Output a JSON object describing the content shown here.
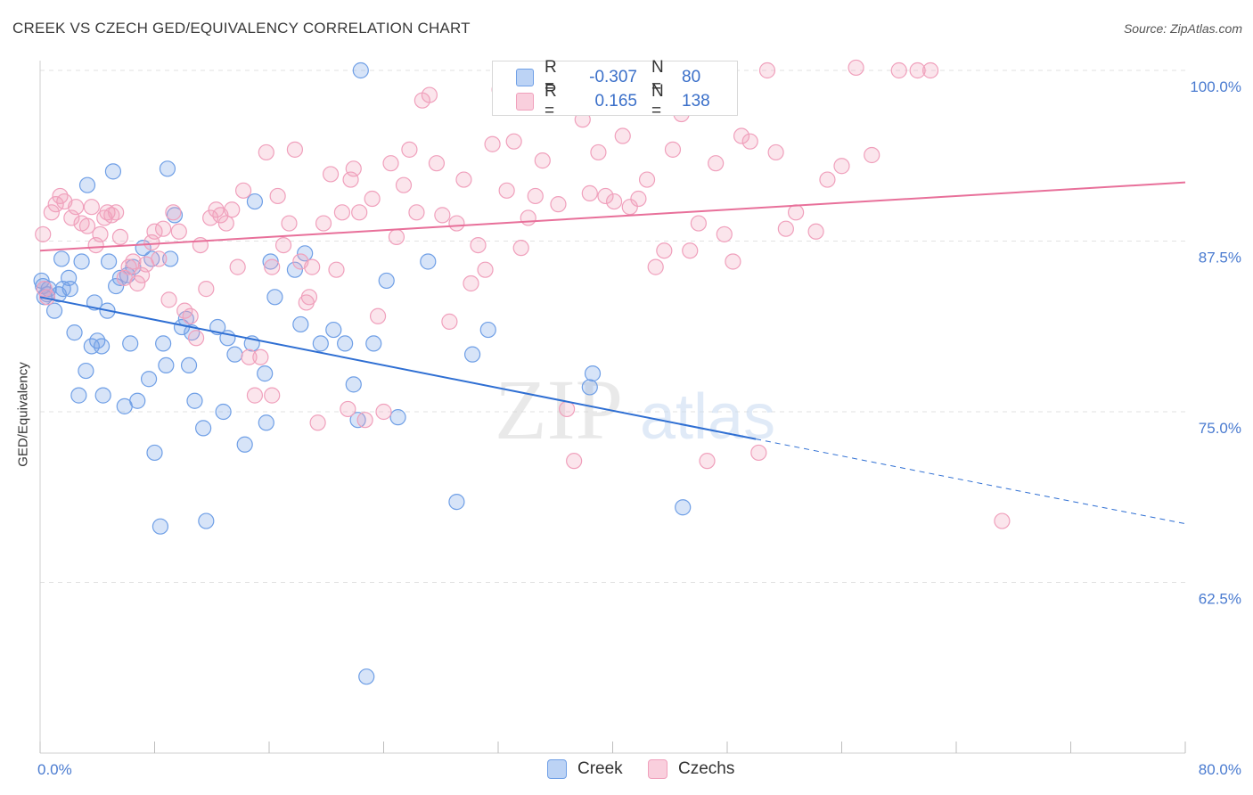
{
  "header": {
    "title": "CREEK VS CZECH GED/EQUIVALENCY CORRELATION CHART",
    "source": "Source: ZipAtlas.com"
  },
  "legend_top": {
    "rows": [
      {
        "r_label": "R =",
        "r_value": "-0.307",
        "n_label": "N =",
        "n_value": "80"
      },
      {
        "r_label": "R =",
        "r_value": "0.165",
        "n_label": "N =",
        "n_value": "138"
      }
    ]
  },
  "legend_bottom": {
    "items": [
      {
        "label": "Creek"
      },
      {
        "label": "Czechs"
      }
    ]
  },
  "watermark": {
    "zip": "ZIP",
    "atlas": "atlas"
  },
  "chart_data": {
    "type": "scatter",
    "title": "CREEK VS CZECH GED/EQUIVALENCY CORRELATION CHART",
    "ylabel": "GED/Equivalency",
    "xlabel": "",
    "xlim": [
      0,
      80
    ],
    "ylim": [
      53,
      102
    ],
    "x_ticks": [
      {
        "value": 0,
        "label": "0.0%"
      },
      {
        "value": 80,
        "label": "80.0%"
      }
    ],
    "y_ticks": [
      {
        "value": 100,
        "label": "100.0%"
      },
      {
        "value": 87.5,
        "label": "87.5%"
      },
      {
        "value": 75,
        "label": "75.0%"
      },
      {
        "value": 62.5,
        "label": "62.5%"
      }
    ],
    "grid": "horizontal dashed",
    "legend_position": "top-center",
    "colors": {
      "creek": "#6f9fe6",
      "czechs": "#f0a0bc",
      "creek_line": "#2f6fd3",
      "czechs_line": "#e8709a",
      "tick_label": "#4a7bd0"
    },
    "series": [
      {
        "name": "Creek",
        "color": "#6f9fe6",
        "trend": {
          "x": [
            0,
            50
          ],
          "y": [
            83.4,
            73.0
          ],
          "dashed_to": [
            80,
            66.8
          ]
        },
        "points": [
          [
            0.1,
            84.6
          ],
          [
            0.2,
            84.2
          ],
          [
            0.3,
            83.4
          ],
          [
            0.6,
            84.0
          ],
          [
            1.0,
            82.4
          ],
          [
            1.3,
            83.6
          ],
          [
            1.5,
            86.2
          ],
          [
            1.6,
            84.0
          ],
          [
            2.0,
            84.8
          ],
          [
            2.1,
            84.0
          ],
          [
            2.4,
            80.8
          ],
          [
            2.7,
            76.2
          ],
          [
            2.9,
            86.0
          ],
          [
            3.2,
            78.0
          ],
          [
            3.3,
            91.6
          ],
          [
            3.6,
            79.8
          ],
          [
            3.8,
            83.0
          ],
          [
            4.0,
            80.2
          ],
          [
            4.3,
            79.8
          ],
          [
            4.4,
            76.2
          ],
          [
            4.7,
            82.4
          ],
          [
            4.8,
            86.0
          ],
          [
            5.1,
            92.6
          ],
          [
            5.3,
            84.2
          ],
          [
            5.6,
            84.8
          ],
          [
            5.9,
            75.4
          ],
          [
            6.1,
            85.0
          ],
          [
            6.3,
            80.0
          ],
          [
            6.5,
            85.6
          ],
          [
            6.8,
            75.8
          ],
          [
            7.2,
            87.0
          ],
          [
            7.6,
            77.4
          ],
          [
            7.8,
            86.2
          ],
          [
            8.0,
            72.0
          ],
          [
            8.4,
            66.6
          ],
          [
            8.6,
            80.0
          ],
          [
            8.8,
            78.4
          ],
          [
            8.9,
            92.8
          ],
          [
            9.1,
            86.2
          ],
          [
            9.4,
            89.4
          ],
          [
            9.9,
            81.2
          ],
          [
            10.2,
            81.8
          ],
          [
            10.4,
            78.4
          ],
          [
            10.6,
            80.8
          ],
          [
            10.8,
            75.8
          ],
          [
            11.4,
            73.8
          ],
          [
            11.6,
            67.0
          ],
          [
            12.4,
            81.2
          ],
          [
            12.8,
            75.0
          ],
          [
            13.1,
            80.4
          ],
          [
            13.6,
            79.2
          ],
          [
            14.3,
            72.6
          ],
          [
            14.8,
            80.0
          ],
          [
            15.0,
            90.4
          ],
          [
            15.7,
            77.8
          ],
          [
            15.8,
            74.2
          ],
          [
            16.1,
            86.0
          ],
          [
            16.4,
            83.4
          ],
          [
            17.8,
            85.4
          ],
          [
            18.2,
            81.4
          ],
          [
            18.5,
            86.6
          ],
          [
            19.6,
            80.0
          ],
          [
            20.5,
            81.0
          ],
          [
            21.3,
            80.0
          ],
          [
            21.9,
            77.0
          ],
          [
            22.2,
            74.4
          ],
          [
            22.4,
            100.0
          ],
          [
            22.8,
            55.6
          ],
          [
            23.3,
            80.0
          ],
          [
            24.2,
            84.6
          ],
          [
            25.0,
            74.6
          ],
          [
            27.1,
            86.0
          ],
          [
            29.1,
            68.4
          ],
          [
            30.2,
            79.2
          ],
          [
            31.3,
            81.0
          ],
          [
            38.4,
            76.8
          ],
          [
            38.6,
            77.8
          ],
          [
            44.9,
            68.0
          ],
          [
            46.5,
            100.0
          ],
          [
            0.5,
            83.6
          ]
        ]
      },
      {
        "name": "Czechs",
        "color": "#f0a0bc",
        "trend": {
          "x": [
            0,
            80
          ],
          "y": [
            86.8,
            91.8
          ]
        },
        "points": [
          [
            0.2,
            88.0
          ],
          [
            0.3,
            84.0
          ],
          [
            0.5,
            83.4
          ],
          [
            0.8,
            89.6
          ],
          [
            1.1,
            90.2
          ],
          [
            1.4,
            90.8
          ],
          [
            1.7,
            90.4
          ],
          [
            2.2,
            89.2
          ],
          [
            2.5,
            90.0
          ],
          [
            2.9,
            88.8
          ],
          [
            3.3,
            88.6
          ],
          [
            3.6,
            90.0
          ],
          [
            3.9,
            87.2
          ],
          [
            4.2,
            88.0
          ],
          [
            4.5,
            89.2
          ],
          [
            4.7,
            89.6
          ],
          [
            5.0,
            89.4
          ],
          [
            5.3,
            89.6
          ],
          [
            5.6,
            87.8
          ],
          [
            5.9,
            84.8
          ],
          [
            6.2,
            85.6
          ],
          [
            6.5,
            86.0
          ],
          [
            6.8,
            84.4
          ],
          [
            7.1,
            85.0
          ],
          [
            7.4,
            85.8
          ],
          [
            7.8,
            87.4
          ],
          [
            8.0,
            88.2
          ],
          [
            8.3,
            86.2
          ],
          [
            8.6,
            88.4
          ],
          [
            9.0,
            83.2
          ],
          [
            9.3,
            89.6
          ],
          [
            9.7,
            88.2
          ],
          [
            10.1,
            82.4
          ],
          [
            10.5,
            82.0
          ],
          [
            10.9,
            80.4
          ],
          [
            11.2,
            87.2
          ],
          [
            11.6,
            84.0
          ],
          [
            11.9,
            89.2
          ],
          [
            12.3,
            89.8
          ],
          [
            12.6,
            89.4
          ],
          [
            13.0,
            88.8
          ],
          [
            13.4,
            89.8
          ],
          [
            13.8,
            85.6
          ],
          [
            14.2,
            91.2
          ],
          [
            14.6,
            79.0
          ],
          [
            15.0,
            76.2
          ],
          [
            15.4,
            79.0
          ],
          [
            15.8,
            94.0
          ],
          [
            16.2,
            85.6
          ],
          [
            16.6,
            90.8
          ],
          [
            17.0,
            87.2
          ],
          [
            17.4,
            88.8
          ],
          [
            17.8,
            94.2
          ],
          [
            18.2,
            86.0
          ],
          [
            18.6,
            83.0
          ],
          [
            19.0,
            85.6
          ],
          [
            19.4,
            74.2
          ],
          [
            19.8,
            88.8
          ],
          [
            20.3,
            92.4
          ],
          [
            20.7,
            85.4
          ],
          [
            21.1,
            89.6
          ],
          [
            21.5,
            75.2
          ],
          [
            21.9,
            92.8
          ],
          [
            22.3,
            89.6
          ],
          [
            22.7,
            74.4
          ],
          [
            23.2,
            90.6
          ],
          [
            23.6,
            82.0
          ],
          [
            24.0,
            75.0
          ],
          [
            24.5,
            93.2
          ],
          [
            24.9,
            87.8
          ],
          [
            25.4,
            91.6
          ],
          [
            25.8,
            94.2
          ],
          [
            26.3,
            89.6
          ],
          [
            26.7,
            97.8
          ],
          [
            27.2,
            98.2
          ],
          [
            27.7,
            93.2
          ],
          [
            28.1,
            89.4
          ],
          [
            28.6,
            81.6
          ],
          [
            29.1,
            88.8
          ],
          [
            29.6,
            92.0
          ],
          [
            30.1,
            84.4
          ],
          [
            30.6,
            87.2
          ],
          [
            31.1,
            85.4
          ],
          [
            31.6,
            94.6
          ],
          [
            32.1,
            98.6
          ],
          [
            32.6,
            91.2
          ],
          [
            33.1,
            94.8
          ],
          [
            33.6,
            87.0
          ],
          [
            34.1,
            89.2
          ],
          [
            34.6,
            90.8
          ],
          [
            35.1,
            93.4
          ],
          [
            35.7,
            99.8
          ],
          [
            36.2,
            90.2
          ],
          [
            36.8,
            75.2
          ],
          [
            37.3,
            71.4
          ],
          [
            37.9,
            96.4
          ],
          [
            38.4,
            91.0
          ],
          [
            39.0,
            94.0
          ],
          [
            39.5,
            90.8
          ],
          [
            40.1,
            90.4
          ],
          [
            40.7,
            95.2
          ],
          [
            41.2,
            90.0
          ],
          [
            41.8,
            90.6
          ],
          [
            42.4,
            92.0
          ],
          [
            43.0,
            85.6
          ],
          [
            43.6,
            86.8
          ],
          [
            44.2,
            94.2
          ],
          [
            44.8,
            96.8
          ],
          [
            45.4,
            86.8
          ],
          [
            46.0,
            88.8
          ],
          [
            46.6,
            71.4
          ],
          [
            47.2,
            93.2
          ],
          [
            47.8,
            88.0
          ],
          [
            48.4,
            86.0
          ],
          [
            49.0,
            95.2
          ],
          [
            49.6,
            94.8
          ],
          [
            50.2,
            72.0
          ],
          [
            50.8,
            100.0
          ],
          [
            51.4,
            94.0
          ],
          [
            52.1,
            88.4
          ],
          [
            52.8,
            89.6
          ],
          [
            54.2,
            88.2
          ],
          [
            55.0,
            92.0
          ],
          [
            56.0,
            93.0
          ],
          [
            57.0,
            100.2
          ],
          [
            58.1,
            93.8
          ],
          [
            60.0,
            100.0
          ],
          [
            61.3,
            100.0
          ],
          [
            62.2,
            100.0
          ],
          [
            67.2,
            67.0
          ],
          [
            21.7,
            92.0
          ],
          [
            18.8,
            83.4
          ],
          [
            16.2,
            76.2
          ]
        ]
      }
    ]
  }
}
